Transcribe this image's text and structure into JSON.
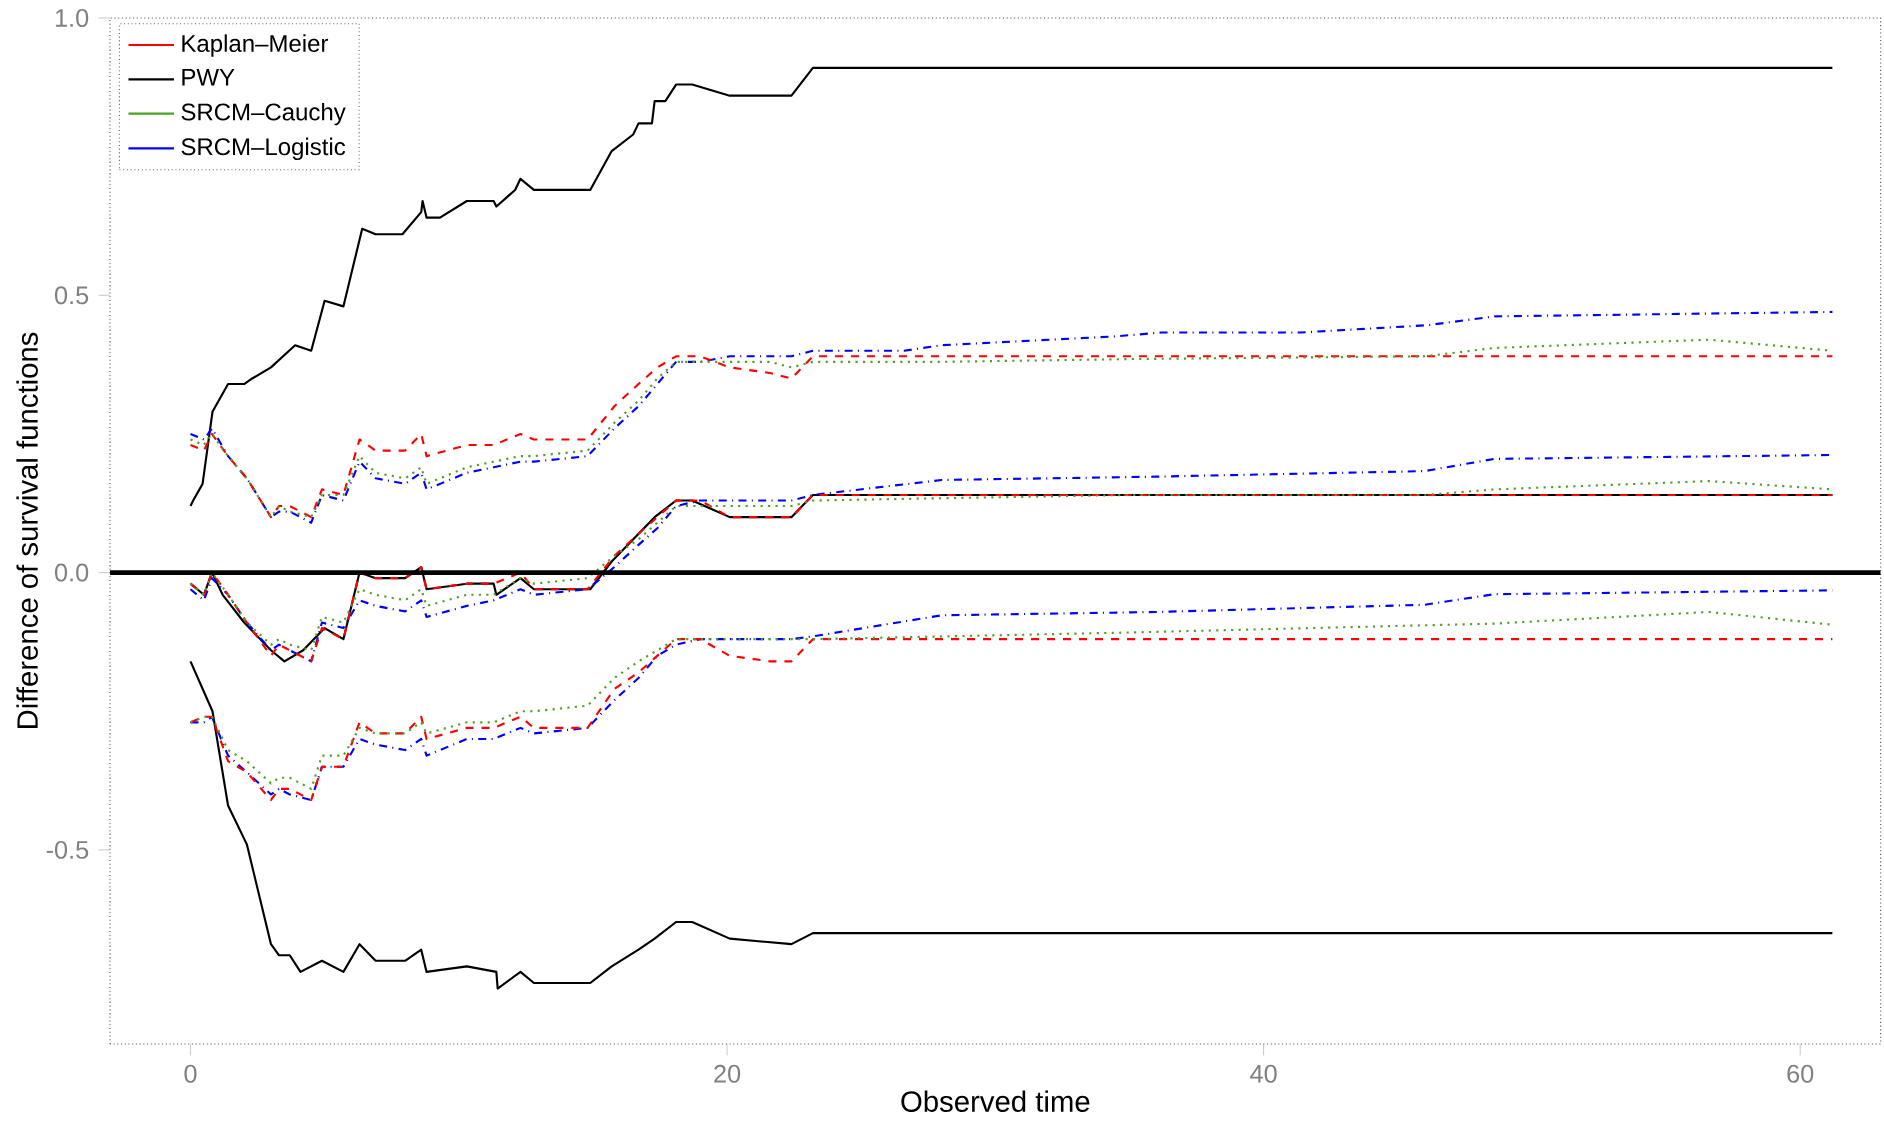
{
  "chart_data": {
    "type": "line",
    "xlabel": "Observed time",
    "ylabel": "Difference of survival functions",
    "xlim": [
      -3,
      63
    ],
    "ylim": [
      -0.85,
      1.0
    ],
    "xticks": [
      0,
      20,
      40,
      60
    ],
    "yticks": [
      {
        "value": -0.5,
        "label": "-0.5"
      },
      {
        "value": 0,
        "label": "0.0"
      },
      {
        "value": 0.5,
        "label": "0.5"
      },
      {
        "value": 1.0,
        "label": "1.0"
      }
    ],
    "grid": false,
    "legend": "top left",
    "marker": "none",
    "ref_lines": [
      {
        "axis": "y",
        "value": 0,
        "color": "#000000"
      }
    ],
    "series": [
      {
        "name": "Kaplan–Meier",
        "color": "#ff0000",
        "line_style": "dashed",
        "x": [
          0,
          0.5,
          0.8,
          1.4,
          2.1,
          3.0,
          3.3,
          3.7,
          4.5,
          4.9,
          5.7,
          6.3,
          6.9,
          8.0,
          8.6,
          8.8,
          10.3,
          11.3,
          12.3,
          12.8,
          14.8,
          15.8,
          16.7,
          17.4,
          18.1,
          19.0,
          20.1,
          21.6,
          22.4,
          23.2,
          61.2
        ],
        "values": [
          0.23,
          0.22,
          0.25,
          0.21,
          0.17,
          0.1,
          0.12,
          0.12,
          0.1,
          0.15,
          0.14,
          0.24,
          0.22,
          0.22,
          0.25,
          0.21,
          0.23,
          0.23,
          0.25,
          0.24,
          0.24,
          0.3,
          0.34,
          0.37,
          0.39,
          0.39,
          0.37,
          0.36,
          0.35,
          0.39,
          0.39
        ]
      },
      {
        "color": "#ff0000",
        "line_style": "dashed",
        "x": [
          0,
          0.5,
          0.8,
          1.4,
          2.1,
          3.0,
          3.3,
          3.7,
          4.5,
          4.9,
          5.7,
          6.3,
          6.9,
          8.0,
          8.6,
          8.8,
          10.3,
          11.3,
          12.3,
          12.8,
          14.8,
          15.8,
          16.7,
          17.4,
          18.1,
          19.0,
          20.1,
          21.6,
          22.4,
          23.2,
          61.2
        ],
        "values": [
          -0.02,
          -0.04,
          0.0,
          -0.04,
          -0.09,
          -0.15,
          -0.13,
          -0.14,
          -0.16,
          -0.1,
          -0.12,
          0.0,
          -0.01,
          -0.01,
          0.01,
          -0.03,
          -0.02,
          -0.02,
          0.0,
          -0.03,
          -0.03,
          0.03,
          0.07,
          0.1,
          0.13,
          0.13,
          0.1,
          0.1,
          0.1,
          0.14,
          0.14
        ]
      },
      {
        "color": "#ff0000",
        "line_style": "dashed",
        "x": [
          0,
          0.5,
          0.8,
          1.4,
          2.1,
          3.0,
          3.3,
          3.7,
          4.5,
          4.9,
          5.7,
          6.3,
          6.9,
          8.0,
          8.6,
          8.8,
          10.3,
          11.3,
          12.3,
          12.8,
          14.8,
          15.8,
          16.7,
          17.4,
          18.1,
          19.0,
          20.1,
          21.6,
          22.4,
          23.2,
          61.2
        ],
        "values": [
          -0.27,
          -0.26,
          -0.26,
          -0.34,
          -0.36,
          -0.41,
          -0.39,
          -0.39,
          -0.41,
          -0.35,
          -0.35,
          -0.27,
          -0.29,
          -0.29,
          -0.26,
          -0.3,
          -0.28,
          -0.28,
          -0.26,
          -0.28,
          -0.28,
          -0.21,
          -0.18,
          -0.15,
          -0.12,
          -0.12,
          -0.15,
          -0.16,
          -0.16,
          -0.12,
          -0.12
        ]
      },
      {
        "name": "PWY",
        "color": "#000000",
        "line_style": "solid",
        "x": [
          0,
          0.1,
          0.45,
          0.82,
          1.4,
          2.0,
          2.3,
          3.0,
          3.9,
          4.5,
          5.0,
          5.7,
          6.0,
          6.4,
          6.9,
          7.9,
          8.6,
          8.65,
          8.8,
          9.3,
          10.3,
          11.3,
          11.4,
          12.1,
          12.3,
          12.8,
          14.9,
          15.7,
          16.5,
          16.7,
          17.2,
          17.3,
          17.7,
          18.1,
          18.7,
          20.1,
          22.4,
          23.2,
          61.2
        ],
        "values": [
          0.12,
          0.13,
          0.16,
          0.29,
          0.34,
          0.34,
          0.35,
          0.37,
          0.41,
          0.4,
          0.49,
          0.48,
          0.54,
          0.62,
          0.61,
          0.61,
          0.65,
          0.67,
          0.64,
          0.64,
          0.67,
          0.67,
          0.66,
          0.69,
          0.71,
          0.69,
          0.69,
          0.76,
          0.79,
          0.81,
          0.81,
          0.85,
          0.85,
          0.88,
          0.88,
          0.86,
          0.86,
          0.91,
          0.91
        ]
      },
      {
        "color": "#000000",
        "line_style": "solid",
        "x": [
          0,
          0.5,
          0.8,
          1.2,
          2.0,
          3.0,
          3.5,
          4.2,
          5.0,
          5.7,
          6.3,
          6.9,
          8.0,
          8.6,
          8.8,
          10.3,
          11.3,
          11.4,
          12.3,
          12.8,
          14.9,
          15.7,
          16.5,
          17.3,
          18.1,
          18.7,
          20.1,
          22.4,
          23.2,
          61.2
        ],
        "values": [
          -0.02,
          -0.04,
          0.0,
          -0.04,
          -0.09,
          -0.14,
          -0.16,
          -0.14,
          -0.1,
          -0.12,
          0.0,
          -0.01,
          -0.01,
          0.01,
          -0.03,
          -0.02,
          -0.02,
          -0.04,
          -0.01,
          -0.03,
          -0.03,
          0.02,
          0.06,
          0.1,
          0.13,
          0.13,
          0.1,
          0.1,
          0.14,
          0.14
        ]
      },
      {
        "color": "#000000",
        "line_style": "solid",
        "x": [
          0,
          0.82,
          1.4,
          2.1,
          3.0,
          3.3,
          3.7,
          4.1,
          4.9,
          5.7,
          6.3,
          6.9,
          8.0,
          8.6,
          8.8,
          10.3,
          11.4,
          11.45,
          12.3,
          12.8,
          14.9,
          15.7,
          16.7,
          17.3,
          18.1,
          18.7,
          20.1,
          22.4,
          23.2,
          61.2
        ],
        "values": [
          -0.16,
          -0.25,
          -0.42,
          -0.49,
          -0.67,
          -0.69,
          -0.69,
          -0.72,
          -0.7,
          -0.72,
          -0.67,
          -0.7,
          -0.7,
          -0.68,
          -0.72,
          -0.71,
          -0.72,
          -0.75,
          -0.72,
          -0.74,
          -0.74,
          -0.71,
          -0.68,
          -0.66,
          -0.63,
          -0.63,
          -0.66,
          -0.67,
          -0.65,
          -0.65
        ]
      },
      {
        "name": "SRCM–Cauchy",
        "color": "#4da020",
        "line_style": "dotted",
        "x": [
          0,
          0.5,
          0.8,
          1.4,
          2.1,
          3.0,
          3.3,
          3.7,
          4.5,
          4.9,
          5.7,
          6.3,
          6.9,
          8.0,
          8.6,
          8.8,
          10.3,
          11.3,
          12.3,
          12.8,
          14.8,
          15.8,
          16.7,
          17.4,
          18.1,
          19.0,
          20.1,
          21.6,
          22.4,
          23.2,
          28,
          35,
          46,
          48.6,
          56.6,
          61.2
        ],
        "values": [
          0.24,
          0.23,
          0.25,
          0.21,
          0.17,
          0.1,
          0.12,
          0.11,
          0.1,
          0.14,
          0.14,
          0.21,
          0.18,
          0.17,
          0.19,
          0.16,
          0.19,
          0.2,
          0.21,
          0.21,
          0.22,
          0.27,
          0.31,
          0.35,
          0.38,
          0.38,
          0.38,
          0.38,
          0.37,
          0.38,
          0.38,
          0.385,
          0.39,
          0.405,
          0.42,
          0.4
        ]
      },
      {
        "color": "#4da020",
        "line_style": "dotted",
        "x": [
          0,
          0.5,
          0.8,
          1.4,
          2.1,
          3.0,
          3.3,
          3.7,
          4.5,
          4.9,
          5.7,
          6.3,
          6.9,
          8.0,
          8.6,
          8.8,
          10.3,
          11.3,
          12.3,
          12.8,
          14.8,
          15.8,
          16.7,
          17.4,
          18.1,
          19.0,
          20.1,
          21.6,
          22.4,
          23.2,
          35,
          46,
          48.6,
          56.6,
          61.2
        ],
        "values": [
          -0.02,
          -0.04,
          0.0,
          -0.04,
          -0.09,
          -0.13,
          -0.12,
          -0.13,
          -0.14,
          -0.08,
          -0.09,
          -0.03,
          -0.04,
          -0.05,
          -0.03,
          -0.06,
          -0.04,
          -0.04,
          -0.01,
          -0.02,
          -0.01,
          0.03,
          0.06,
          0.09,
          0.12,
          0.12,
          0.12,
          0.12,
          0.12,
          0.13,
          0.14,
          0.14,
          0.15,
          0.165,
          0.15
        ]
      },
      {
        "color": "#4da020",
        "line_style": "dotted",
        "x": [
          0,
          0.5,
          0.8,
          1.4,
          2.1,
          3.0,
          3.3,
          3.7,
          4.5,
          4.9,
          5.7,
          6.3,
          6.9,
          8.0,
          8.6,
          8.8,
          10.3,
          11.3,
          12.3,
          12.8,
          14.8,
          15.8,
          16.7,
          17.4,
          18.1,
          19.0,
          20.1,
          21.6,
          22.4,
          23.2,
          35,
          48.6,
          56.6,
          61.2
        ],
        "values": [
          -0.27,
          -0.26,
          -0.26,
          -0.32,
          -0.34,
          -0.38,
          -0.37,
          -0.37,
          -0.39,
          -0.33,
          -0.33,
          -0.28,
          -0.29,
          -0.29,
          -0.27,
          -0.29,
          -0.27,
          -0.27,
          -0.25,
          -0.25,
          -0.24,
          -0.19,
          -0.16,
          -0.14,
          -0.12,
          -0.12,
          -0.12,
          -0.12,
          -0.12,
          -0.12,
          -0.108,
          -0.092,
          -0.071,
          -0.094
        ]
      },
      {
        "name": "SRCM–Logistic",
        "color": "#0000ff",
        "line_style": "dashdot",
        "x": [
          0,
          0.5,
          0.8,
          1.4,
          2.1,
          3.0,
          3.3,
          3.7,
          4.5,
          4.9,
          5.7,
          6.3,
          6.9,
          8.0,
          8.6,
          8.8,
          10.3,
          11.3,
          12.3,
          12.8,
          14.8,
          15.8,
          16.7,
          17.4,
          18.1,
          19.0,
          20.1,
          21.6,
          22.4,
          23.2,
          26.6,
          28,
          34.5,
          36.2,
          41.4,
          46.1,
          48.6,
          61.2
        ],
        "values": [
          0.25,
          0.24,
          0.26,
          0.21,
          0.17,
          0.1,
          0.11,
          0.11,
          0.09,
          0.14,
          0.13,
          0.2,
          0.17,
          0.16,
          0.18,
          0.15,
          0.18,
          0.19,
          0.2,
          0.2,
          0.21,
          0.26,
          0.3,
          0.34,
          0.38,
          0.38,
          0.39,
          0.39,
          0.39,
          0.4,
          0.4,
          0.41,
          0.426,
          0.433,
          0.433,
          0.446,
          0.462,
          0.47
        ]
      },
      {
        "color": "#0000ff",
        "line_style": "dashdot",
        "x": [
          0,
          0.5,
          0.8,
          1.4,
          2.1,
          3.0,
          3.3,
          3.7,
          4.5,
          4.9,
          5.7,
          6.3,
          6.9,
          8.0,
          8.6,
          8.8,
          10.3,
          11.3,
          12.3,
          12.8,
          14.8,
          15.8,
          16.7,
          17.4,
          18.1,
          19.0,
          20.1,
          21.6,
          22.4,
          23.2,
          28,
          36,
          46,
          48.6,
          61.2
        ],
        "values": [
          -0.03,
          -0.05,
          -0.01,
          -0.04,
          -0.09,
          -0.14,
          -0.13,
          -0.14,
          -0.16,
          -0.09,
          -0.1,
          -0.05,
          -0.06,
          -0.07,
          -0.05,
          -0.08,
          -0.06,
          -0.05,
          -0.03,
          -0.04,
          -0.03,
          0.01,
          0.05,
          0.08,
          0.12,
          0.13,
          0.13,
          0.13,
          0.13,
          0.14,
          0.167,
          0.173,
          0.183,
          0.205,
          0.212
        ]
      },
      {
        "color": "#0000ff",
        "line_style": "dashdot",
        "x": [
          0,
          0.5,
          0.8,
          1.4,
          2.1,
          3.0,
          3.3,
          3.7,
          4.5,
          4.9,
          5.7,
          6.3,
          6.9,
          8.0,
          8.6,
          8.8,
          10.3,
          11.3,
          12.3,
          12.8,
          14.8,
          15.8,
          16.7,
          17.4,
          18.1,
          19.0,
          20.1,
          21.6,
          22.4,
          23.2,
          28,
          36,
          46,
          48.6,
          61.2
        ],
        "values": [
          -0.27,
          -0.27,
          -0.26,
          -0.33,
          -0.36,
          -0.4,
          -0.39,
          -0.4,
          -0.41,
          -0.35,
          -0.35,
          -0.3,
          -0.31,
          -0.32,
          -0.3,
          -0.33,
          -0.3,
          -0.3,
          -0.28,
          -0.29,
          -0.28,
          -0.23,
          -0.19,
          -0.15,
          -0.13,
          -0.12,
          -0.12,
          -0.12,
          -0.12,
          -0.115,
          -0.077,
          -0.071,
          -0.058,
          -0.039,
          -0.032
        ]
      }
    ]
  }
}
